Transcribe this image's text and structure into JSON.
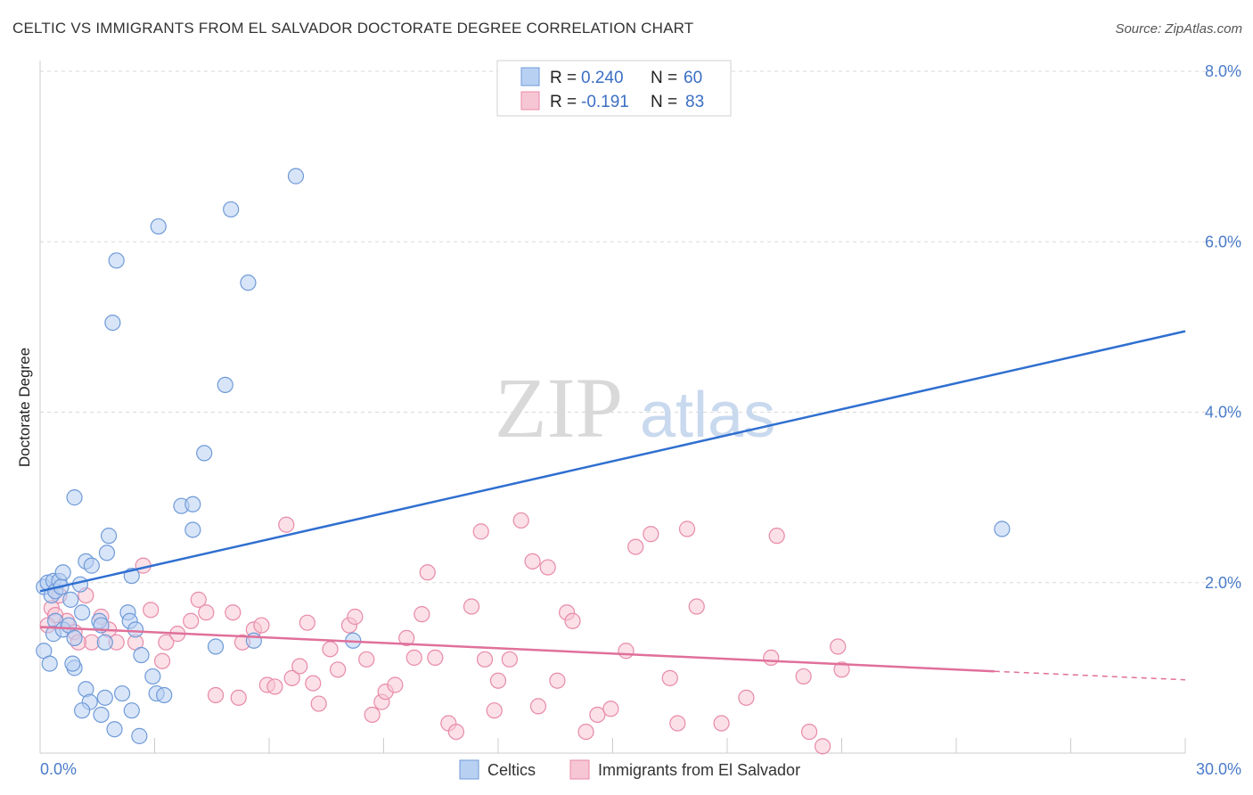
{
  "header": {
    "title": "CELTIC VS IMMIGRANTS FROM EL SALVADOR DOCTORATE DEGREE CORRELATION CHART",
    "source": "Source: ZipAtlas.com"
  },
  "watermark": {
    "zip": "ZIP",
    "atlas": "atlas"
  },
  "legend_top": {
    "rows": [
      {
        "r_label": "R = ",
        "r_value": "0.240",
        "n_label": "N = ",
        "n_value": "60"
      },
      {
        "r_label": "R = ",
        "r_value": "-0.191",
        "n_label": "N = ",
        "n_value": "83"
      }
    ]
  },
  "colors": {
    "celtic_fill": "#b8d0f2",
    "celtic_stroke": "#6f9ad8",
    "celtic_line": "#2f6fd0",
    "salv_fill": "#f7c6d4",
    "salv_stroke": "#e88aa8",
    "salv_line": "#e0709a",
    "grid": "#d9d9d9",
    "tick_text": "#4a7cc9"
  },
  "chart_data": {
    "type": "scatter",
    "title": "CELTIC VS IMMIGRANTS FROM EL SALVADOR DOCTORATE DEGREE CORRELATION CHART",
    "xlabel": "",
    "ylabel": "Doctorate Degree",
    "xlim": [
      0,
      30
    ],
    "ylim": [
      0,
      8
    ],
    "x_tick_labels": [
      "0.0%",
      "30.0%"
    ],
    "y_ticks": [
      2,
      4,
      6,
      8
    ],
    "y_tick_labels": [
      "2.0%",
      "4.0%",
      "6.0%",
      "8.0%"
    ],
    "grid": "horizontal dashed",
    "legend_position": "bottom-center",
    "series": [
      {
        "name": "Celtics",
        "r": 0.24,
        "n": 60,
        "trend": {
          "x": [
            0,
            30
          ],
          "y": [
            1.9,
            4.95
          ]
        },
        "points": [
          [
            0.1,
            1.95
          ],
          [
            0.2,
            2.0
          ],
          [
            0.3,
            1.85
          ],
          [
            0.35,
            2.02
          ],
          [
            0.4,
            1.9
          ],
          [
            0.5,
            2.02
          ],
          [
            0.55,
            1.95
          ],
          [
            0.6,
            2.12
          ],
          [
            0.4,
            1.55
          ],
          [
            0.35,
            1.4
          ],
          [
            0.6,
            1.45
          ],
          [
            0.75,
            1.5
          ],
          [
            0.8,
            1.8
          ],
          [
            0.9,
            1.35
          ],
          [
            1.05,
            1.98
          ],
          [
            1.1,
            1.65
          ],
          [
            1.2,
            2.25
          ],
          [
            1.35,
            2.2
          ],
          [
            1.55,
            1.55
          ],
          [
            1.6,
            1.5
          ],
          [
            1.7,
            1.3
          ],
          [
            1.75,
            2.35
          ],
          [
            1.8,
            2.55
          ],
          [
            1.9,
            5.05
          ],
          [
            2.0,
            5.78
          ],
          [
            2.3,
            1.65
          ],
          [
            2.35,
            1.55
          ],
          [
            2.4,
            2.08
          ],
          [
            2.5,
            1.45
          ],
          [
            2.65,
            1.15
          ],
          [
            0.9,
            1.0
          ],
          [
            0.85,
            1.05
          ],
          [
            1.2,
            0.75
          ],
          [
            1.3,
            0.6
          ],
          [
            1.7,
            0.65
          ],
          [
            1.6,
            0.45
          ],
          [
            1.1,
            0.5
          ],
          [
            2.15,
            0.7
          ],
          [
            2.4,
            0.5
          ],
          [
            1.95,
            0.28
          ],
          [
            2.6,
            0.2
          ],
          [
            2.95,
            0.9
          ],
          [
            3.05,
            0.7
          ],
          [
            3.25,
            0.68
          ],
          [
            0.9,
            3.0
          ],
          [
            3.1,
            6.18
          ],
          [
            3.7,
            2.9
          ],
          [
            4.0,
            2.92
          ],
          [
            4.0,
            2.62
          ],
          [
            4.3,
            3.52
          ],
          [
            4.6,
            1.25
          ],
          [
            4.85,
            4.32
          ],
          [
            5.0,
            6.38
          ],
          [
            5.45,
            5.52
          ],
          [
            5.6,
            1.32
          ],
          [
            6.7,
            6.77
          ],
          [
            8.2,
            1.32
          ],
          [
            25.2,
            2.63
          ],
          [
            0.1,
            1.2
          ],
          [
            0.25,
            1.05
          ]
        ]
      },
      {
        "name": "Immigrants from El Salvador",
        "r": -0.191,
        "n": 83,
        "trend": {
          "x": [
            0,
            25.0
          ],
          "y": [
            1.48,
            0.96
          ]
        },
        "trend_dashed": {
          "x": [
            25.0,
            30
          ],
          "y": [
            0.96,
            0.86
          ]
        },
        "points": [
          [
            0.3,
            1.7
          ],
          [
            0.5,
            1.85
          ],
          [
            0.7,
            1.55
          ],
          [
            0.9,
            1.42
          ],
          [
            1.2,
            1.85
          ],
          [
            1.35,
            1.3
          ],
          [
            1.6,
            1.6
          ],
          [
            1.8,
            1.45
          ],
          [
            2.0,
            1.3
          ],
          [
            2.5,
            1.3
          ],
          [
            2.7,
            2.2
          ],
          [
            2.9,
            1.68
          ],
          [
            3.2,
            1.08
          ],
          [
            3.3,
            1.3
          ],
          [
            3.6,
            1.4
          ],
          [
            3.95,
            1.55
          ],
          [
            4.15,
            1.8
          ],
          [
            4.35,
            1.65
          ],
          [
            4.6,
            0.68
          ],
          [
            5.05,
            1.65
          ],
          [
            5.2,
            0.65
          ],
          [
            5.3,
            1.3
          ],
          [
            5.6,
            1.45
          ],
          [
            5.8,
            1.5
          ],
          [
            5.95,
            0.8
          ],
          [
            6.15,
            0.78
          ],
          [
            6.45,
            2.68
          ],
          [
            6.6,
            0.88
          ],
          [
            6.8,
            1.02
          ],
          [
            7.0,
            1.53
          ],
          [
            7.15,
            0.82
          ],
          [
            7.3,
            0.58
          ],
          [
            7.6,
            1.22
          ],
          [
            7.8,
            0.98
          ],
          [
            8.1,
            1.5
          ],
          [
            8.25,
            1.6
          ],
          [
            8.55,
            1.1
          ],
          [
            8.7,
            0.45
          ],
          [
            8.95,
            0.6
          ],
          [
            9.05,
            0.72
          ],
          [
            9.3,
            0.8
          ],
          [
            9.6,
            1.35
          ],
          [
            9.8,
            1.12
          ],
          [
            10.0,
            1.63
          ],
          [
            10.15,
            2.12
          ],
          [
            10.35,
            1.12
          ],
          [
            10.7,
            0.35
          ],
          [
            10.9,
            0.25
          ],
          [
            11.3,
            1.72
          ],
          [
            11.55,
            2.6
          ],
          [
            11.65,
            1.1
          ],
          [
            11.9,
            0.5
          ],
          [
            12.0,
            0.85
          ],
          [
            12.3,
            1.1
          ],
          [
            12.6,
            2.73
          ],
          [
            12.9,
            2.25
          ],
          [
            13.05,
            0.55
          ],
          [
            13.3,
            2.18
          ],
          [
            13.55,
            0.85
          ],
          [
            13.8,
            1.65
          ],
          [
            13.95,
            1.55
          ],
          [
            14.3,
            0.25
          ],
          [
            14.6,
            0.45
          ],
          [
            14.95,
            0.52
          ],
          [
            15.35,
            1.2
          ],
          [
            15.6,
            2.42
          ],
          [
            16.0,
            2.57
          ],
          [
            16.5,
            0.88
          ],
          [
            16.7,
            0.35
          ],
          [
            16.95,
            2.63
          ],
          [
            17.2,
            1.72
          ],
          [
            17.85,
            0.35
          ],
          [
            18.5,
            0.65
          ],
          [
            19.15,
            1.12
          ],
          [
            19.3,
            2.55
          ],
          [
            20.0,
            0.9
          ],
          [
            20.15,
            0.25
          ],
          [
            20.5,
            0.08
          ],
          [
            20.9,
            1.25
          ],
          [
            21.0,
            0.98
          ],
          [
            0.4,
            1.62
          ],
          [
            0.2,
            1.5
          ],
          [
            1.0,
            1.3
          ]
        ]
      }
    ]
  },
  "bottom_legend": {
    "items": [
      {
        "label": "Celtics"
      },
      {
        "label": "Immigrants from El Salvador"
      }
    ]
  }
}
